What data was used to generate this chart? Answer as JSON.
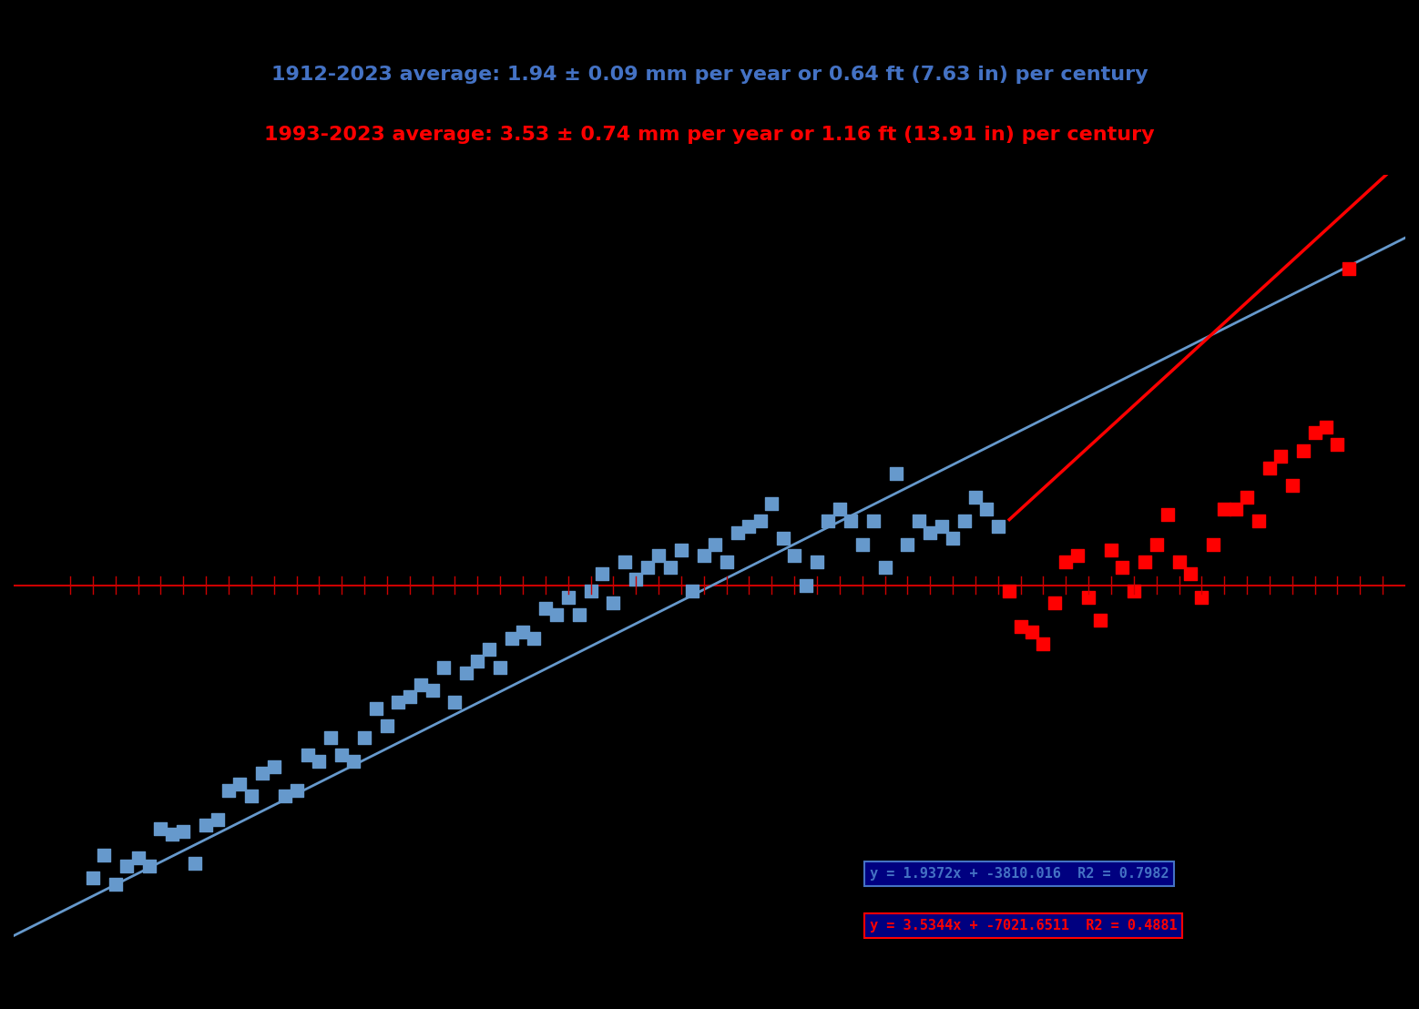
{
  "title_line1": "1912-2023 average: 1.94 ± 0.09 mm per year or 0.64 ft (7.63 in) per century",
  "title_line2": "1993-2023 average: 3.53 ± 0.74 mm per year or 1.16 ft (13.91 in) per century",
  "title1_color": "#4472c4",
  "title2_color": "#ff0000",
  "background_color": "#000000",
  "blue_eq": "y = 1.9372x + -3810.016  R2 = 0.7982",
  "red_eq": "y = 3.5344x + -7021.6511  R2 = 0.4881",
  "blue_slope": 1.9372,
  "blue_intercept": -3810.016,
  "red_slope": 3.5344,
  "red_intercept": -7021.6511,
  "blue_data": [
    [
      1912,
      -100
    ],
    [
      1913,
      -92
    ],
    [
      1914,
      -102
    ],
    [
      1915,
      -96
    ],
    [
      1916,
      -93
    ],
    [
      1917,
      -96
    ],
    [
      1918,
      -83
    ],
    [
      1919,
      -85
    ],
    [
      1920,
      -84
    ],
    [
      1921,
      -95
    ],
    [
      1922,
      -82
    ],
    [
      1923,
      -80
    ],
    [
      1924,
      -70
    ],
    [
      1925,
      -68
    ],
    [
      1926,
      -72
    ],
    [
      1927,
      -64
    ],
    [
      1928,
      -62
    ],
    [
      1929,
      -72
    ],
    [
      1930,
      -70
    ],
    [
      1931,
      -58
    ],
    [
      1932,
      -60
    ],
    [
      1933,
      -52
    ],
    [
      1934,
      -58
    ],
    [
      1935,
      -60
    ],
    [
      1936,
      -52
    ],
    [
      1937,
      -42
    ],
    [
      1938,
      -48
    ],
    [
      1939,
      -40
    ],
    [
      1940,
      -38
    ],
    [
      1941,
      -34
    ],
    [
      1942,
      -36
    ],
    [
      1943,
      -28
    ],
    [
      1944,
      -40
    ],
    [
      1945,
      -30
    ],
    [
      1946,
      -26
    ],
    [
      1947,
      -22
    ],
    [
      1948,
      -28
    ],
    [
      1949,
      -18
    ],
    [
      1950,
      -16
    ],
    [
      1951,
      -18
    ],
    [
      1952,
      -8
    ],
    [
      1953,
      -10
    ],
    [
      1954,
      -4
    ],
    [
      1955,
      -10
    ],
    [
      1956,
      -2
    ],
    [
      1957,
      4
    ],
    [
      1958,
      -6
    ],
    [
      1959,
      8
    ],
    [
      1960,
      2
    ],
    [
      1961,
      6
    ],
    [
      1962,
      10
    ],
    [
      1963,
      6
    ],
    [
      1964,
      12
    ],
    [
      1965,
      -2
    ],
    [
      1966,
      10
    ],
    [
      1967,
      14
    ],
    [
      1968,
      8
    ],
    [
      1969,
      18
    ],
    [
      1970,
      20
    ],
    [
      1971,
      22
    ],
    [
      1972,
      28
    ],
    [
      1973,
      16
    ],
    [
      1974,
      10
    ],
    [
      1975,
      0
    ],
    [
      1976,
      8
    ],
    [
      1977,
      22
    ],
    [
      1978,
      26
    ],
    [
      1979,
      22
    ],
    [
      1980,
      14
    ],
    [
      1981,
      22
    ],
    [
      1982,
      6
    ],
    [
      1983,
      38
    ],
    [
      1984,
      14
    ],
    [
      1985,
      22
    ],
    [
      1986,
      18
    ],
    [
      1987,
      20
    ],
    [
      1988,
      16
    ],
    [
      1989,
      22
    ],
    [
      1990,
      30
    ],
    [
      1991,
      26
    ],
    [
      1992,
      20
    ]
  ],
  "red_data": [
    [
      1993,
      -2
    ],
    [
      1994,
      -14
    ],
    [
      1995,
      -16
    ],
    [
      1996,
      -20
    ],
    [
      1997,
      -6
    ],
    [
      1998,
      8
    ],
    [
      1999,
      10
    ],
    [
      2000,
      -4
    ],
    [
      2001,
      -12
    ],
    [
      2002,
      12
    ],
    [
      2003,
      6
    ],
    [
      2004,
      -2
    ],
    [
      2005,
      8
    ],
    [
      2006,
      14
    ],
    [
      2007,
      24
    ],
    [
      2008,
      8
    ],
    [
      2009,
      4
    ],
    [
      2010,
      -4
    ],
    [
      2011,
      14
    ],
    [
      2012,
      26
    ],
    [
      2013,
      26
    ],
    [
      2014,
      30
    ],
    [
      2015,
      22
    ],
    [
      2016,
      40
    ],
    [
      2017,
      44
    ],
    [
      2018,
      34
    ],
    [
      2019,
      46
    ],
    [
      2020,
      52
    ],
    [
      2021,
      54
    ],
    [
      2022,
      48
    ],
    [
      2023,
      108
    ]
  ],
  "xlim": [
    1905,
    2028
  ],
  "ylim": [
    -140,
    140
  ],
  "zero_line_color": "#cc0000",
  "scatter_marker": "s",
  "scatter_size": 90,
  "blue_color": "#6699cc",
  "red_color": "#ff0000",
  "blue_line_color": "#6699cc",
  "red_line_color": "#ff0000",
  "eq_box_bg": "#000080",
  "eq_box_edge": "#4472c4",
  "eq_blue_text": "#4472c4",
  "eq_red_text": "#ff0000",
  "title1_fontsize": 16,
  "title2_fontsize": 16
}
